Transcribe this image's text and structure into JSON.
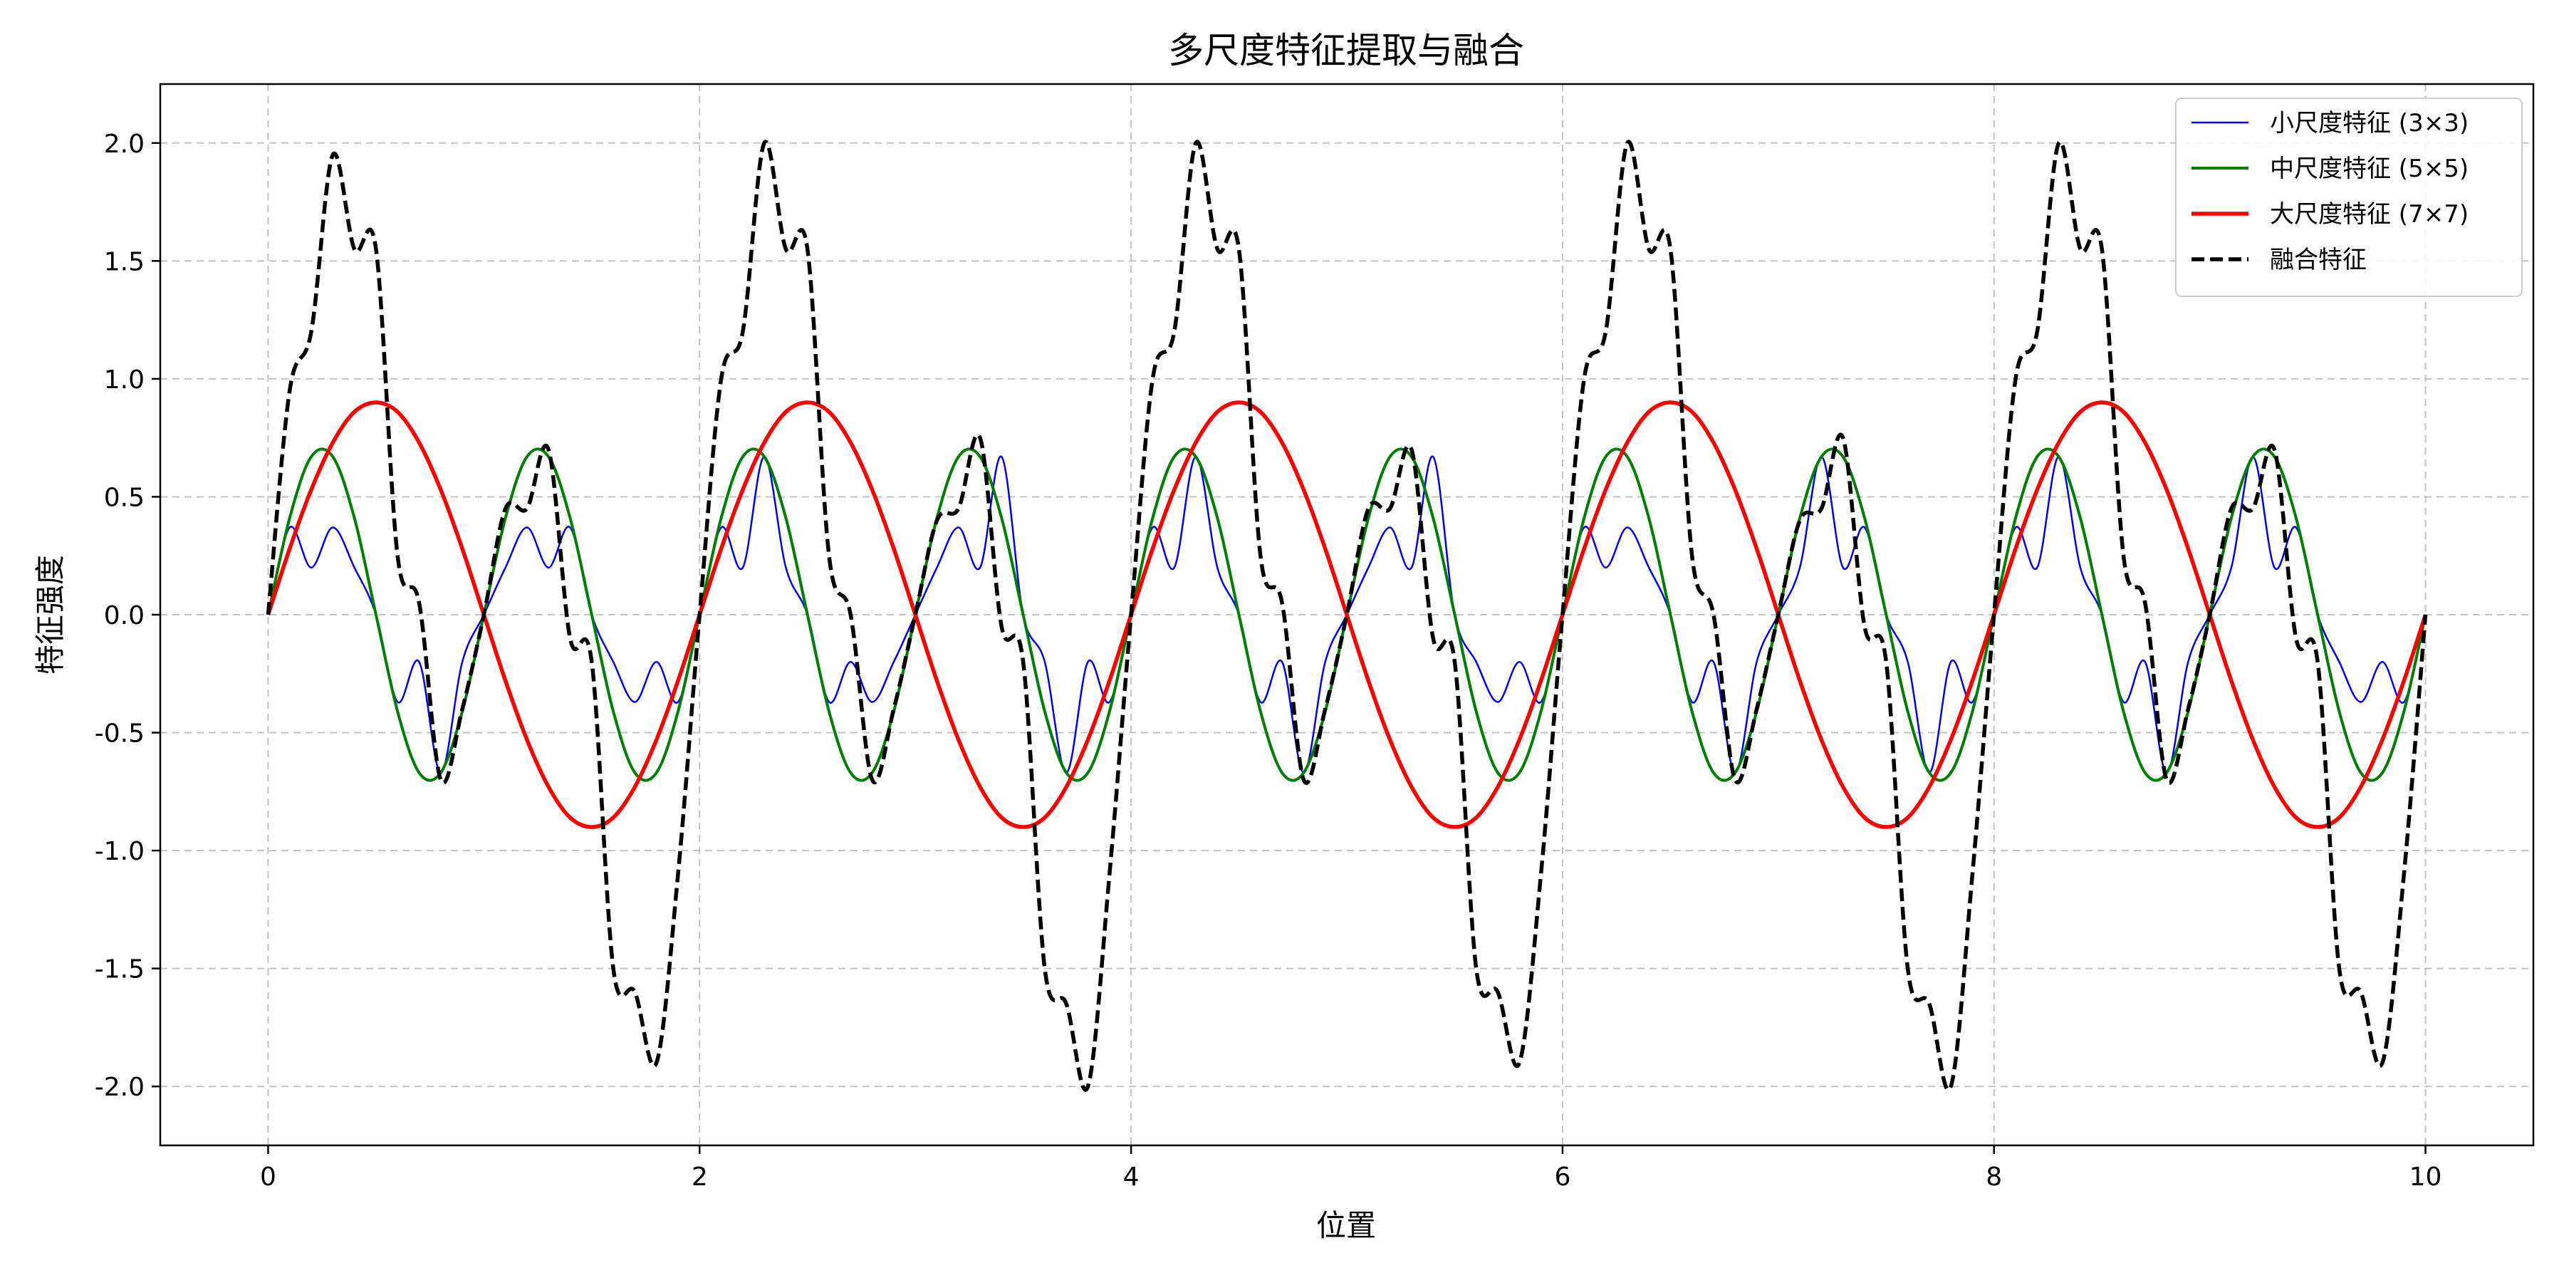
{
  "chart_data": {
    "type": "line",
    "title": "多尺度特征提取与融合",
    "xlabel": "位置",
    "ylabel": "特征强度",
    "xlim": [
      -0.5,
      10.5
    ],
    "ylim": [
      -2.25,
      2.25
    ],
    "xticks": [
      0,
      2,
      4,
      6,
      8,
      10
    ],
    "xtick_labels": [
      "0",
      "2",
      "4",
      "6",
      "8",
      "10"
    ],
    "yticks": [
      -2.0,
      -1.5,
      -1.0,
      -0.5,
      0.0,
      0.5,
      1.0,
      1.5,
      2.0
    ],
    "ytick_labels": [
      "-2.0",
      "-1.5",
      "-1.0",
      "-0.5",
      "0.0",
      "0.5",
      "1.0",
      "1.5",
      "2.0"
    ],
    "grid": true,
    "legend_position": "top-right",
    "x": [
      0,
      0.1,
      0.2,
      0.3,
      0.4,
      0.5,
      0.6,
      0.7,
      0.8,
      0.9,
      1,
      1.1,
      1.2,
      1.3,
      1.4,
      1.5,
      1.6,
      1.7,
      1.8,
      1.9,
      2,
      2.1,
      2.2,
      2.3,
      2.4,
      2.5,
      2.6,
      2.7,
      2.8,
      2.9,
      3,
      3.1,
      3.2,
      3.3,
      3.4,
      3.5,
      3.6,
      3.7,
      3.8,
      3.9,
      4,
      4.1,
      4.2,
      4.3,
      4.4,
      4.5,
      4.6,
      4.7,
      4.8,
      4.9,
      5,
      5.1,
      5.2,
      5.3,
      5.4,
      5.5,
      5.6,
      5.7,
      5.8,
      5.9,
      6,
      6.1,
      6.2,
      6.3,
      6.4,
      6.5,
      6.6,
      6.7,
      6.8,
      6.9,
      7,
      7.1,
      7.2,
      7.3,
      7.4,
      7.5,
      7.6,
      7.7,
      7.8,
      7.9,
      8,
      8.1,
      8.2,
      8.3,
      8.4,
      8.5,
      8.6,
      8.7,
      8.8,
      8.9,
      9,
      9.1,
      9.2,
      9.3,
      9.4,
      9.5,
      9.6,
      9.7,
      9.8,
      9.9,
      10
    ],
    "series": [
      {
        "name": "小尺度特征 (3×3)",
        "color": "#0000ff",
        "style": "solid",
        "width": 2.5,
        "values": [
          0,
          0.37,
          0.2,
          0.37,
          0.2,
          0,
          -0.37,
          -0.2,
          -0.67,
          -0.2,
          0,
          0.2,
          0.37,
          0.2,
          0.37,
          0,
          -0.2,
          -0.37,
          -0.2,
          -0.37,
          0,
          0.37,
          0.2,
          0.67,
          0.2,
          0,
          -0.37,
          -0.2,
          -0.37,
          -0.2,
          0,
          0.2,
          0.37,
          0.2,
          0.67,
          0,
          -0.2,
          -0.67,
          -0.2,
          -0.37,
          0,
          0.37,
          0.2,
          0.67,
          0.2,
          0,
          -0.37,
          -0.2,
          -0.67,
          -0.2,
          0,
          0.2,
          0.37,
          0.2,
          0.67,
          0,
          -0.2,
          -0.37,
          -0.2,
          -0.37,
          0,
          0.37,
          0.2,
          0.37,
          0.2,
          0,
          -0.37,
          -0.2,
          -0.67,
          -0.2,
          0,
          0.2,
          0.67,
          0.2,
          0.37,
          0,
          -0.2,
          -0.67,
          -0.2,
          -0.37,
          0,
          0.37,
          0.2,
          0.67,
          0.2,
          0,
          -0.37,
          -0.2,
          -0.67,
          -0.2,
          0,
          0.2,
          0.67,
          0.2,
          0.37,
          0,
          -0.2,
          -0.37,
          -0.2,
          -0.37,
          0
        ]
      },
      {
        "name": "中尺度特征 (5×5)",
        "color": "#008000",
        "style": "solid",
        "width": 4,
        "values": [
          0,
          0.41,
          0.67,
          0.67,
          0.41,
          0,
          -0.41,
          -0.67,
          -0.67,
          -0.41,
          0,
          0.41,
          0.67,
          0.67,
          0.41,
          0,
          -0.41,
          -0.67,
          -0.67,
          -0.41,
          0,
          0.41,
          0.67,
          0.67,
          0.41,
          0,
          -0.41,
          -0.67,
          -0.67,
          -0.41,
          0,
          0.41,
          0.67,
          0.67,
          0.41,
          0,
          -0.41,
          -0.67,
          -0.67,
          -0.41,
          0,
          0.41,
          0.67,
          0.67,
          0.41,
          0,
          -0.41,
          -0.67,
          -0.67,
          -0.41,
          0,
          0.41,
          0.67,
          0.67,
          0.41,
          0,
          -0.41,
          -0.67,
          -0.67,
          -0.41,
          0,
          0.41,
          0.67,
          0.67,
          0.41,
          0,
          -0.41,
          -0.67,
          -0.67,
          -0.41,
          0,
          0.41,
          0.67,
          0.67,
          0.41,
          0,
          -0.41,
          -0.67,
          -0.67,
          -0.41,
          0,
          0.41,
          0.67,
          0.67,
          0.41,
          0,
          -0.41,
          -0.67,
          -0.67,
          -0.41,
          0,
          0.41,
          0.67,
          0.67,
          0.41,
          0,
          -0.41,
          -0.67,
          -0.67,
          -0.41,
          0
        ]
      },
      {
        "name": "大尺度特征 (7×7)",
        "color": "#ff0000",
        "style": "solid",
        "width": 5.5,
        "values": [
          0,
          0.28,
          0.53,
          0.73,
          0.86,
          0.9,
          0.86,
          0.73,
          0.53,
          0.28,
          0,
          -0.28,
          -0.53,
          -0.73,
          -0.86,
          -0.9,
          -0.86,
          -0.73,
          -0.53,
          -0.28,
          0,
          0.28,
          0.53,
          0.73,
          0.86,
          0.9,
          0.86,
          0.73,
          0.53,
          0.28,
          0,
          -0.28,
          -0.53,
          -0.73,
          -0.86,
          -0.9,
          -0.86,
          -0.73,
          -0.53,
          -0.28,
          0,
          0.28,
          0.53,
          0.73,
          0.86,
          0.9,
          0.86,
          0.73,
          0.53,
          0.28,
          0,
          -0.28,
          -0.53,
          -0.73,
          -0.86,
          -0.9,
          -0.86,
          -0.73,
          -0.53,
          -0.28,
          0,
          0.28,
          0.53,
          0.73,
          0.86,
          0.9,
          0.86,
          0.73,
          0.53,
          0.28,
          0,
          -0.28,
          -0.53,
          -0.73,
          -0.86,
          -0.9,
          -0.86,
          -0.73,
          -0.53,
          -0.28,
          0,
          0.28,
          0.53,
          0.73,
          0.86,
          0.9,
          0.86,
          0.73,
          0.53,
          0.28,
          0,
          -0.28,
          -0.53,
          -0.73,
          -0.86,
          -0.9,
          -0.86,
          -0.73,
          -0.53,
          -0.28,
          0
        ]
      },
      {
        "name": "融合特征",
        "color": "#000000",
        "style": "dashed",
        "width": 5.5,
        "values": [
          0,
          0.95,
          1.2,
          1.95,
          1.55,
          1.55,
          0.25,
          0.05,
          -0.7,
          -0.4,
          0,
          0.45,
          0.45,
          0.7,
          -0.1,
          -0.2,
          -1.5,
          -1.6,
          -1.9,
          -1.1,
          0,
          1.0,
          1.2,
          2.0,
          1.55,
          1.55,
          0.25,
          0.0,
          -0.7,
          -0.4,
          0,
          0.4,
          0.45,
          0.75,
          -0.05,
          -0.2,
          -1.5,
          -1.65,
          -2.0,
          -1.1,
          0,
          1.0,
          1.2,
          2.0,
          1.55,
          1.55,
          0.25,
          0.05,
          -0.7,
          -0.4,
          0,
          0.45,
          0.45,
          0.7,
          -0.1,
          -0.2,
          -1.5,
          -1.6,
          -1.9,
          -1.1,
          0,
          1.0,
          1.2,
          2.0,
          1.55,
          1.55,
          0.25,
          0.0,
          -0.7,
          -0.4,
          0,
          0.4,
          0.45,
          0.75,
          -0.05,
          -0.2,
          -1.5,
          -1.65,
          -2.0,
          -1.1,
          0,
          1.0,
          1.2,
          2.0,
          1.55,
          1.55,
          0.25,
          0.05,
          -0.7,
          -0.4,
          0,
          0.45,
          0.45,
          0.7,
          -0.1,
          -0.2,
          -1.5,
          -1.6,
          -1.9,
          -1.1,
          0
        ]
      }
    ]
  }
}
